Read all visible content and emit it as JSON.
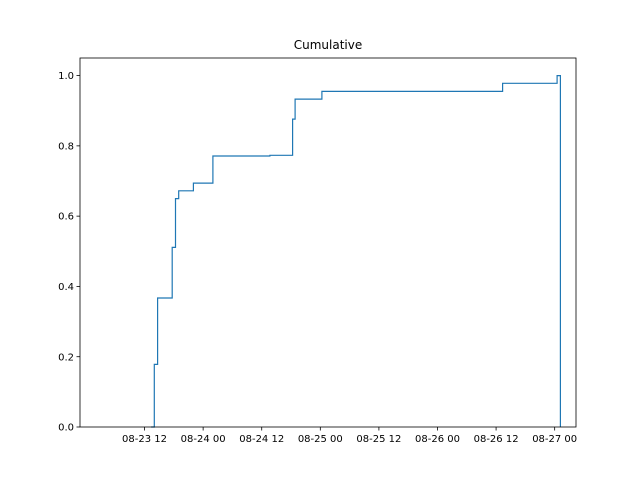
{
  "chart_data": {
    "type": "step",
    "title": "Cumulative",
    "xlabel": "",
    "ylabel": "",
    "x_axis": {
      "type": "datetime",
      "range": [
        "2023-08-23 00:00",
        "2023-08-27 00:00"
      ],
      "tick_labels": [
        "08-23 12",
        "08-24 00",
        "08-24 12",
        "08-25 00",
        "08-25 12",
        "08-26 00",
        "08-26 12",
        "08-27 00"
      ],
      "tick_values": [
        "2023-08-23 12:00",
        "2023-08-24 00:00",
        "2023-08-24 12:00",
        "2023-08-25 00:00",
        "2023-08-25 12:00",
        "2023-08-26 00:00",
        "2023-08-26 12:00",
        "2023-08-27 00:00"
      ]
    },
    "y_axis": {
      "range": [
        0,
        1.05
      ],
      "tick_labels": [
        "0.0",
        "0.2",
        "0.4",
        "0.6",
        "0.8",
        "1.0"
      ],
      "tick_values": [
        0.0,
        0.2,
        0.4,
        0.6,
        0.8,
        1.0
      ]
    },
    "grid": false,
    "line_color": "#1f77b4",
    "series": [
      {
        "x": [
          "2023-08-23 13:20",
          "2023-08-23 14:00",
          "2023-08-23 14:40",
          "2023-08-23 17:40",
          "2023-08-23 18:20",
          "2023-08-23 19:00",
          "2023-08-23 22:00",
          "2023-08-24 02:00",
          "2023-08-24 13:40",
          "2023-08-24 18:20",
          "2023-08-24 18:50",
          "2023-08-25 00:20",
          "2023-08-26 13:20",
          "2023-08-27 00:30",
          "2023-08-27 01:10"
        ],
        "y": [
          0.0,
          0.178,
          0.367,
          0.511,
          0.65,
          0.672,
          0.694,
          0.771,
          0.773,
          0.876,
          0.933,
          0.955,
          0.978,
          1.0,
          0.0
        ]
      }
    ]
  }
}
